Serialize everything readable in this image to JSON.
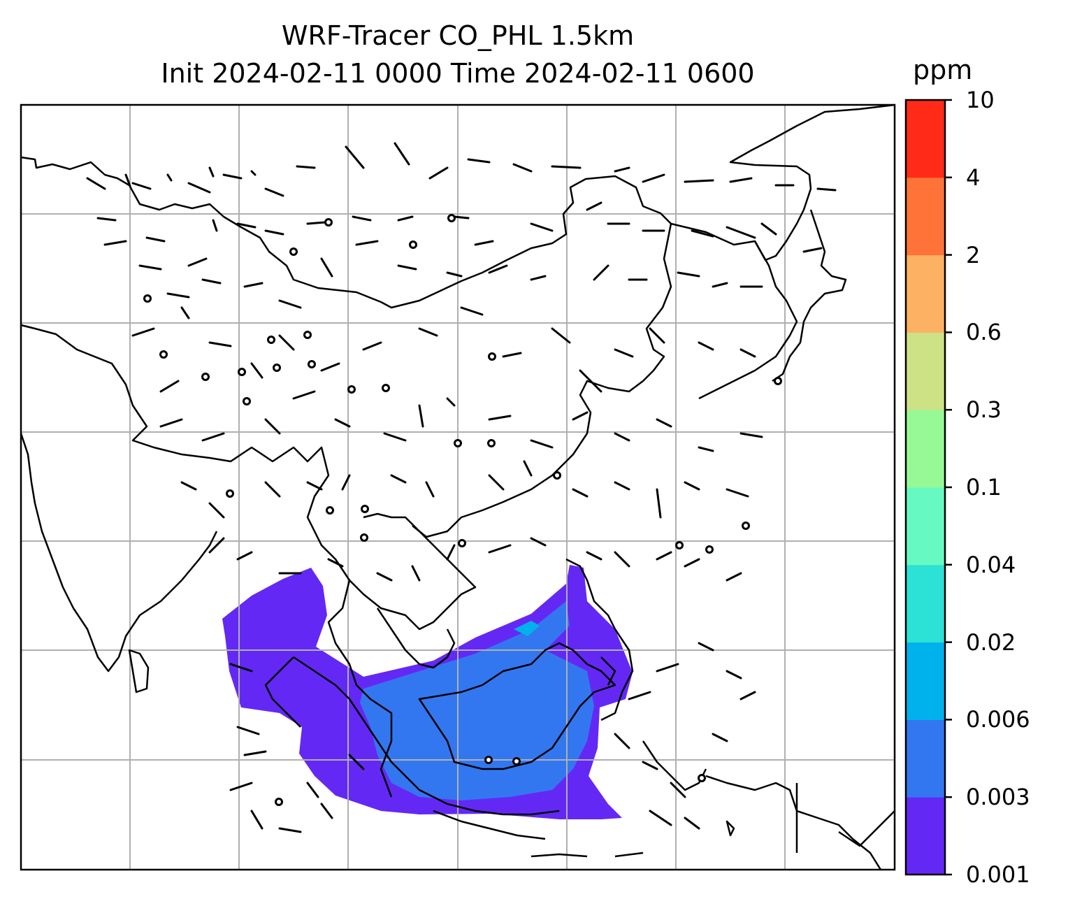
{
  "title": {
    "line1": "WRF-Tracer CO_PHL 1.5km",
    "line2": "Init 2024-02-11 0000 Time 2024-02-11 0600"
  },
  "colorbar": {
    "unit": "ppm",
    "ticks": [
      "0.001",
      "0.003",
      "0.006",
      "0.02",
      "0.04",
      "0.1",
      "0.3",
      "0.6",
      "2",
      "4",
      "10"
    ],
    "colors": [
      "#6428f5",
      "#3377f0",
      "#00b2ec",
      "#2ce1d5",
      "#66fac2",
      "#96f995",
      "#cde185",
      "#fdb162",
      "#ff7339",
      "#ff2a18"
    ]
  },
  "map": {
    "field_name": "CO_PHL",
    "gridlines": true,
    "wind_barbs": true
  }
}
